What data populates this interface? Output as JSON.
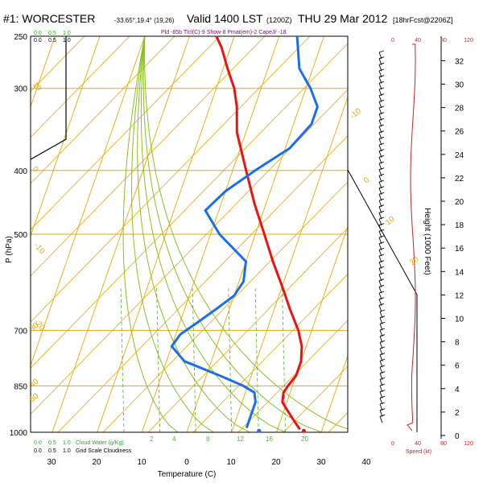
{
  "header": {
    "station": "#1: WORCESTER",
    "coords": "-33.65°,19.4° (19,26)",
    "valid": "Valid 1400 LST",
    "utc": "(1200Z)",
    "date": "THU 29 Mar 2012",
    "forecast": "[18hrFcst@2206Z]",
    "indices": "Pld -85b Tlcl(C)-9 Show-8 Pmat(em)-2 CapeJ/ -18"
  },
  "colors": {
    "temperature": "#ee1111",
    "dewpoint": "#1a6fe8",
    "isotherm": "#e8a800",
    "dry_adiabat": "#e8b020",
    "moist_adiabat": "#88c020",
    "mixing_ratio": "#55b030",
    "wind_speed": "#cc2222",
    "cloud_water": "#22aa22"
  },
  "labels": {
    "y_axis": "P (hPa)",
    "x_axis": "Temperature (C)",
    "height_axis": "Height (1000 Feet)",
    "speed_axis": "Speed (kt)",
    "cloud_water": "Cloud Water (g/Kg)",
    "grid_scale": "Grid Scale Cloudiness"
  },
  "chart_data": {
    "type": "line",
    "pressure_ticks": [
      "250",
      "300",
      "400",
      "500",
      "700",
      "850",
      "1000"
    ],
    "temperature_ticks": [
      "30",
      "20",
      "10",
      "0",
      "10",
      "20",
      "30",
      "40"
    ],
    "height_ticks": [
      "0",
      "2",
      "4",
      "6",
      "8",
      "10",
      "12",
      "14",
      "16",
      "18",
      "20",
      "22",
      "24",
      "26",
      "28",
      "30",
      "32"
    ],
    "top_scale": [
      "0.0",
      "0.5",
      "1.0"
    ],
    "bottom_scale": [
      "0.0",
      "0.5",
      "1.0"
    ],
    "speed_ticks_top": [
      "0",
      "40",
      "80",
      "120"
    ],
    "speed_ticks_bottom": [
      "0",
      "40",
      "80",
      "120"
    ],
    "isotherm_labels": [
      "-10",
      "0",
      "10",
      "20",
      "30",
      "40",
      "50"
    ],
    "dry_adiabat_labels": [
      "10",
      "0",
      "-10",
      "-20",
      "-30",
      "-40",
      "-50",
      "-60"
    ],
    "mixing_ratio_labels": [
      "2",
      "4",
      "8",
      "12",
      "16",
      "20"
    ],
    "series": [
      {
        "name": "Temperature",
        "pressure": [
          990,
          960,
          930,
          900,
          870,
          850,
          820,
          780,
          740,
          700,
          650,
          600,
          550,
          500,
          450,
          400,
          350,
          320,
          300,
          280,
          260,
          250
        ],
        "values": [
          25,
          23,
          21,
          19,
          18.5,
          19,
          20,
          20,
          19,
          17,
          13.5,
          10,
          6,
          2,
          -2.5,
          -7,
          -12,
          -14,
          -16,
          -19,
          -22,
          -24
        ]
      },
      {
        "name": "Dewpoint",
        "pressure": [
          985,
          950,
          900,
          870,
          850,
          820,
          780,
          740,
          710,
          680,
          650,
          620,
          590,
          550,
          500,
          460,
          430,
          400,
          370,
          340,
          320,
          300,
          280,
          250
        ],
        "values": [
          13,
          13,
          13,
          12,
          9,
          3,
          -6,
          -10,
          -9,
          -6,
          -3,
          0,
          1,
          0,
          -8,
          -13,
          -10,
          -5,
          1,
          4,
          4,
          1,
          -3,
          -6
        ]
      }
    ]
  }
}
